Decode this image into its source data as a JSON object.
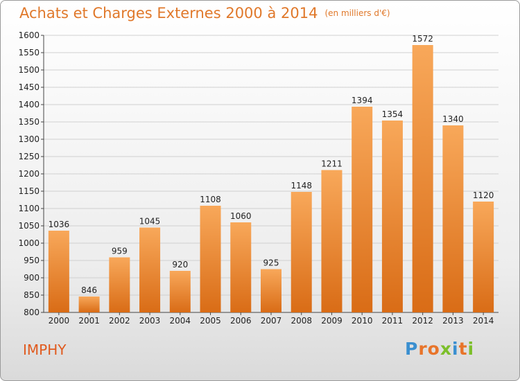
{
  "header": {
    "title": "Achats et Charges Externes 2000 à 2014",
    "subtitle": "(en milliers d'€)"
  },
  "location": "IMPHY",
  "logo": {
    "text": "Proxiti",
    "colors": [
      "#3a8fd0",
      "#e8742a",
      "#e8742a",
      "#7cbf2a",
      "#3a8fd0",
      "#e8742a",
      "#7cbf2a"
    ]
  },
  "colors": {
    "bar_light": "#f8a85a",
    "bar_dark": "#d96c16",
    "title": "#e0782a",
    "grid": "#d0d0d0"
  },
  "chart_data": {
    "type": "bar",
    "title": "Achats et Charges Externes 2000 à 2014",
    "subtitle": "(en milliers d'€)",
    "xlabel": "",
    "ylabel": "",
    "categories": [
      "2000",
      "2001",
      "2002",
      "2003",
      "2004",
      "2005",
      "2006",
      "2007",
      "2008",
      "2009",
      "2010",
      "2011",
      "2012",
      "2013",
      "2014"
    ],
    "values": [
      1036,
      846,
      959,
      1045,
      920,
      1108,
      1060,
      925,
      1148,
      1211,
      1394,
      1354,
      1572,
      1340,
      1120
    ],
    "ylim": [
      800,
      1600
    ],
    "yticks": [
      800,
      850,
      900,
      950,
      1000,
      1050,
      1100,
      1150,
      1200,
      1250,
      1300,
      1350,
      1400,
      1450,
      1500,
      1550,
      1600
    ],
    "grid": true,
    "data_labels": true
  }
}
